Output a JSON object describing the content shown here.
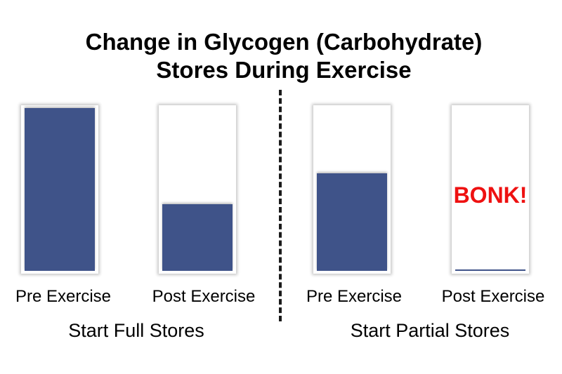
{
  "title": {
    "line1": "Change in Glycogen (Carbohydrate)",
    "line2": "Stores During Exercise"
  },
  "groups": [
    {
      "label": "Start Full Stores",
      "bars": [
        {
          "label": "Pre Exercise",
          "level": 1.0
        },
        {
          "label": "Post Exercise",
          "level": 0.41
        }
      ]
    },
    {
      "label": "Start Partial Stores",
      "bars": [
        {
          "label": "Pre Exercise",
          "level": 0.6
        },
        {
          "label": "Post Exercise",
          "level": 0.01,
          "annotation": "BONK!"
        }
      ]
    }
  ],
  "colors": {
    "fill": "#3f5389",
    "annotation": "#ee1111"
  }
}
